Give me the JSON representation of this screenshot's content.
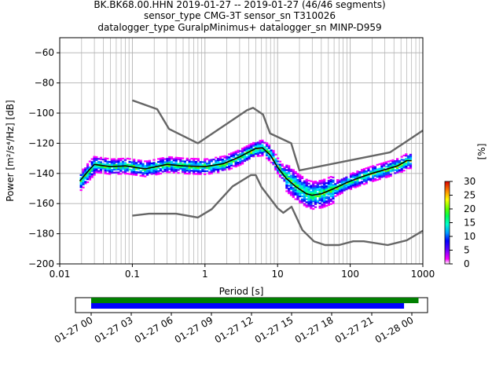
{
  "title_lines": [
    "BK.BK68.00.HHN   2019-01-27 -- 2019-01-27  (46/46 segments)",
    "sensor_type CMG-3T sensor_sn T310026",
    "datalogger_type GuralpMinimus+ datalogger_sn MINP-D959"
  ],
  "colorbar": {
    "label": "[%]",
    "ticks": [
      "0",
      "5",
      "10",
      "15",
      "20",
      "25",
      "30"
    ],
    "range": [
      0,
      30
    ]
  },
  "chart_data": [
    {
      "type": "heatmap",
      "xlabel": "Period [s]",
      "ylabel": "Power [m²/s⁴/Hz] [dB]",
      "xscale": "log",
      "xlim": [
        0.01,
        1000
      ],
      "ylim": [
        -200,
        -50
      ],
      "x_ticks": [
        "0.01",
        "0.1",
        "1",
        "10",
        "100",
        "1000"
      ],
      "y_ticks": [
        "−200",
        "−180",
        "−160",
        "−140",
        "−120",
        "−100",
        "−80",
        "−60"
      ],
      "grid": true,
      "series": [
        {
          "role": "high-noise-model",
          "color": "#666666",
          "points": [
            [
              0.1,
              -91.5
            ],
            [
              0.22,
              -97.4
            ],
            [
              0.32,
              -110.5
            ],
            [
              0.8,
              -120
            ],
            [
              3.8,
              -98
            ],
            [
              4.6,
              -96.5
            ],
            [
              6.3,
              -101
            ],
            [
              7.9,
              -113.5
            ],
            [
              15.4,
              -120
            ],
            [
              20,
              -138
            ],
            [
              354.8,
              -126
            ],
            [
              1000,
              -111.5
            ]
          ]
        },
        {
          "role": "low-noise-model",
          "color": "#666666",
          "points": [
            [
              0.1,
              -168
            ],
            [
              0.17,
              -166.7
            ],
            [
              0.4,
              -166.7
            ],
            [
              0.8,
              -169.2
            ],
            [
              1.24,
              -163.7
            ],
            [
              2.4,
              -148.6
            ],
            [
              4.3,
              -141.1
            ],
            [
              5.0,
              -141.1
            ],
            [
              6.0,
              -149
            ],
            [
              10,
              -163
            ],
            [
              12.0,
              -166.1
            ],
            [
              15.6,
              -162.1
            ],
            [
              21.9,
              -177.5
            ],
            [
              31.6,
              -185
            ],
            [
              45,
              -187.5
            ],
            [
              70,
              -187.5
            ],
            [
              110,
              -185
            ],
            [
              154,
              -185
            ],
            [
              328,
              -187.5
            ],
            [
              600,
              -184.4
            ],
            [
              1000,
              -178
            ]
          ]
        },
        {
          "role": "mode",
          "color": "#000000",
          "points": [
            [
              0.0189,
              -145
            ],
            [
              0.025,
              -138
            ],
            [
              0.03,
              -134
            ],
            [
              0.05,
              -135.5
            ],
            [
              0.08,
              -135
            ],
            [
              0.15,
              -137
            ],
            [
              0.3,
              -134
            ],
            [
              0.5,
              -135
            ],
            [
              1,
              -135.5
            ],
            [
              1.8,
              -133.5
            ],
            [
              3,
              -129
            ],
            [
              5,
              -123.5
            ],
            [
              6.2,
              -123
            ],
            [
              8,
              -128
            ],
            [
              10,
              -136
            ],
            [
              13,
              -143
            ],
            [
              18,
              -149
            ],
            [
              25,
              -153.5
            ],
            [
              30,
              -154.5
            ],
            [
              40,
              -153.5
            ],
            [
              60,
              -150
            ],
            [
              90,
              -146
            ],
            [
              130,
              -143
            ],
            [
              200,
              -140
            ],
            [
              300,
              -137.5
            ],
            [
              450,
              -135
            ],
            [
              600,
              -131.5
            ],
            [
              700,
              -131.5
            ]
          ]
        }
      ]
    },
    {
      "type": "bar",
      "role": "data-availability",
      "x_ticks": [
        "01-27 00",
        "01-27 03",
        "01-27 06",
        "01-27 09",
        "01-27 12",
        "01-27 15",
        "01-27 18",
        "01-27 21",
        "01-28 00"
      ],
      "bars": [
        {
          "color": "#008000",
          "start": "01-27 00:00",
          "end": "01-28 00:30"
        },
        {
          "color": "#0000ff",
          "start": "01-27 00:00",
          "end": "01-27 23:25"
        }
      ]
    }
  ]
}
